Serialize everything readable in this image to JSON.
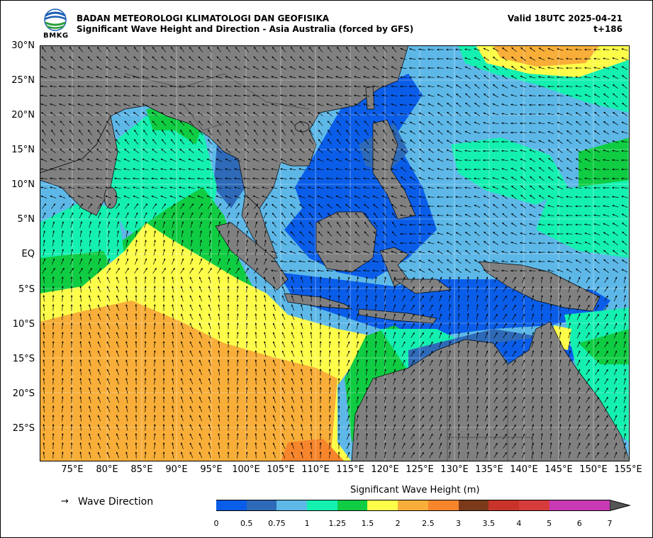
{
  "header": {
    "agency": "BADAN METEOROLOGI KLIMATOLOGI DAN GEOFISIKA",
    "subtitle": "Significant Wave Height and Direction - Asia Australia (forced by GFS)",
    "valid": "Valid 18UTC 2025-04-21",
    "lead_time": "t+186",
    "logo_text": "BMKG"
  },
  "map": {
    "latitude_labels": [
      "30°N",
      "25°N",
      "20°N",
      "15°N",
      "10°N",
      "5°N",
      "EQ",
      "5°S",
      "10°S",
      "15°S",
      "20°S",
      "25°S"
    ],
    "longitude_labels": [
      "75°E",
      "80°E",
      "85°E",
      "90°E",
      "95°E",
      "100°E",
      "105°E",
      "110°E",
      "115°E",
      "120°E",
      "125°E",
      "130°E",
      "135°E",
      "140°E",
      "145°E",
      "150°E",
      "155°E"
    ],
    "lon_range": [
      70,
      155
    ],
    "lat_range": [
      -29.5,
      30
    ],
    "land_color": "#808080",
    "coast_color": "#000000"
  },
  "legend": {
    "arrow_symbol": "→",
    "arrow_label": "Wave Direction"
  },
  "colorbar": {
    "title": "Significant Wave Height (m)",
    "ticks": [
      "0",
      "0.5",
      "0.75",
      "1",
      "1.25",
      "1.5",
      "2",
      "2.5",
      "3",
      "3.5",
      "4",
      "5",
      "6",
      "7"
    ],
    "colors": [
      "#0a5de8",
      "#2e6ab8",
      "#5db8e8",
      "#14f0b0",
      "#0fcc43",
      "#fdfd4a",
      "#f8ae38",
      "#f7852c",
      "#7b3a1a",
      "#c8342a",
      "#d63c3c",
      "#c83ab4",
      "#c83ab4"
    ],
    "extend_color": "#555555"
  }
}
